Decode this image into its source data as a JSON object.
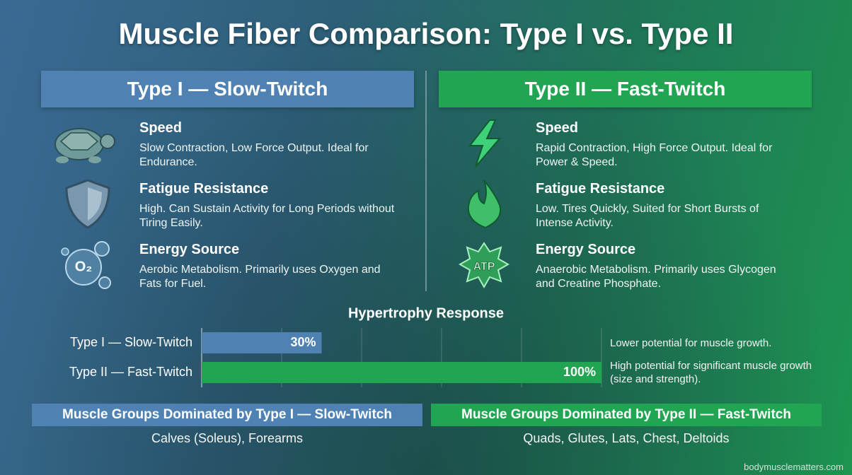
{
  "title": "Muscle Fiber Comparison: Type I vs. Type II",
  "columns": [
    {
      "header": "Type I — Slow-Twitch",
      "features": [
        {
          "title": "Speed",
          "text": "Slow Contraction, Low Force Output. Ideal for Endurance."
        },
        {
          "title": "Fatigue Resistance",
          "text": "High. Can Sustain Activity for Long Periods without Tiring Easily."
        },
        {
          "title": "Energy Source",
          "text": "Aerobic Metabolism. Primarily uses Oxygen and Fats for Fuel.",
          "icon_label": "O₂"
        }
      ]
    },
    {
      "header": "Type II — Fast-Twitch",
      "features": [
        {
          "title": "Speed",
          "text": "Rapid Contraction, High Force Output. Ideal for Power & Speed."
        },
        {
          "title": "Fatigue Resistance",
          "text": "Low. Tires Quickly, Suited for Short Bursts of Intense Activity."
        },
        {
          "title": "Energy Source",
          "text": "Anaerobic Metabolism. Primarily uses Glycogen and Creatine Phosphate.",
          "icon_label": "ATP"
        }
      ]
    }
  ],
  "chart_data": {
    "type": "bar",
    "orientation": "horizontal",
    "title": "Hypertrophy Response",
    "categories": [
      "Type I — Slow-Twitch",
      "Type II — Fast-Twitch"
    ],
    "values": [
      30,
      100
    ],
    "value_labels": [
      "30%",
      "100%"
    ],
    "colors": [
      "#4f82b3",
      "#22a552"
    ],
    "xlim": [
      0,
      100
    ],
    "xticks": [
      0,
      20,
      40,
      60,
      80,
      100
    ],
    "grid": true,
    "annotations": [
      "Lower potential for muscle growth.",
      "High potential for significant muscle growth (size and strength)."
    ]
  },
  "groups": [
    {
      "title": "Muscle Groups Dominated by Type I — Slow-Twitch",
      "muscles": "Calves (Soleus), Forearms"
    },
    {
      "title": "Muscle Groups Dominated by Type II — Fast-Twitch",
      "muscles": "Quads, Glutes, Lats, Chest, Deltoids"
    }
  ],
  "footer": "bodymusclematters.com"
}
